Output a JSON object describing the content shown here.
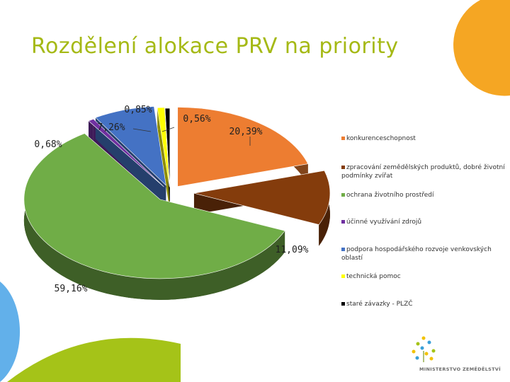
{
  "slide": {
    "title": "Rozdělení alokace PRV na priority",
    "logo": {
      "icon": "ministry-flower-logo-icon",
      "text": "MINISTERSTVO ZEMĚDĚLSTVÍ"
    }
  },
  "chart_data": {
    "type": "pie",
    "style": "3d-exploded",
    "title": "",
    "legend_position": "right",
    "slices": [
      {
        "name": "konkurenceschopnost",
        "value": 20.39,
        "label": "20,39%",
        "color": "#ed7d31"
      },
      {
        "name": "zpracování zemědělských produktů, dobré životní podmínky zvířat",
        "value": 11.09,
        "label": "11,09%",
        "color": "#843c0c"
      },
      {
        "name": "ochrana životního prostředí",
        "value": 59.16,
        "label": "59,16%",
        "color": "#70ad47"
      },
      {
        "name": "účinné využívání zdrojů",
        "value": 0.68,
        "label": "0,68%",
        "color": "#7030a0"
      },
      {
        "name": "podpora hospodářského rozvoje venkovských oblastí",
        "value": 7.26,
        "label": "7,26%",
        "color": "#4472c4"
      },
      {
        "name": "technická pomoc",
        "value": 0.85,
        "label": "0,85%",
        "color": "#ffff00"
      },
      {
        "name": "staré závazky - PLZČ",
        "value": 0.56,
        "label": "0,56%",
        "color": "#000000"
      }
    ]
  }
}
